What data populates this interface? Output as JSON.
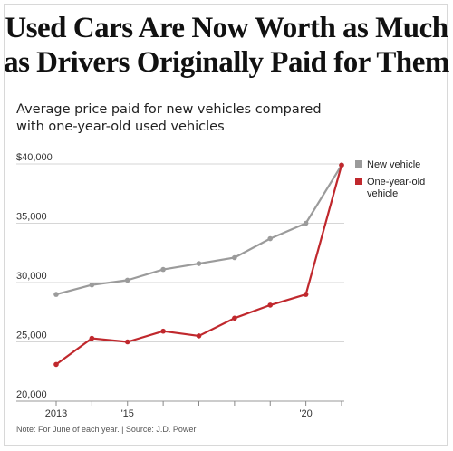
{
  "title_line1": "Used Cars Are Now Worth as Much",
  "title_line2": "as Drivers Originally Paid for Them",
  "subtitle_line1": "Average price paid for new vehicles compared",
  "subtitle_line2": "with one-year-old used vehicles",
  "note": "Note: For June of each year. | Source: J.D. Power",
  "chart_data": {
    "type": "line",
    "x": [
      2013,
      2014,
      2015,
      2016,
      2017,
      2018,
      2019,
      2020,
      2021
    ],
    "x_tick_labels": [
      {
        "x": 2013,
        "label": "2013"
      },
      {
        "x": 2014,
        "label": ""
      },
      {
        "x": 2015,
        "label": "'15"
      },
      {
        "x": 2016,
        "label": ""
      },
      {
        "x": 2017,
        "label": ""
      },
      {
        "x": 2018,
        "label": ""
      },
      {
        "x": 2019,
        "label": ""
      },
      {
        "x": 2020,
        "label": "'20"
      },
      {
        "x": 2021,
        "label": ""
      }
    ],
    "y_ticks": [
      {
        "value": 20000,
        "label": "20,000"
      },
      {
        "value": 25000,
        "label": "25,000"
      },
      {
        "value": 30000,
        "label": "30,000"
      },
      {
        "value": 35000,
        "label": "35,000"
      },
      {
        "value": 40000,
        "label": "$40,000"
      }
    ],
    "ylim": [
      20000,
      40000
    ],
    "xlim": [
      2013,
      2021
    ],
    "grid": true,
    "legend_position": "top-right",
    "series": [
      {
        "name": "New vehicle",
        "color": "#9b9b9b",
        "values": [
          29000,
          29800,
          30200,
          31100,
          31600,
          32100,
          33700,
          35000,
          39900
        ]
      },
      {
        "name": "One-year-old vehicle",
        "legend_lines": [
          "One-year-old",
          "vehicle"
        ],
        "color": "#c0282d",
        "values": [
          23100,
          25300,
          25000,
          25900,
          25500,
          27000,
          28100,
          29000,
          39900
        ]
      }
    ]
  }
}
